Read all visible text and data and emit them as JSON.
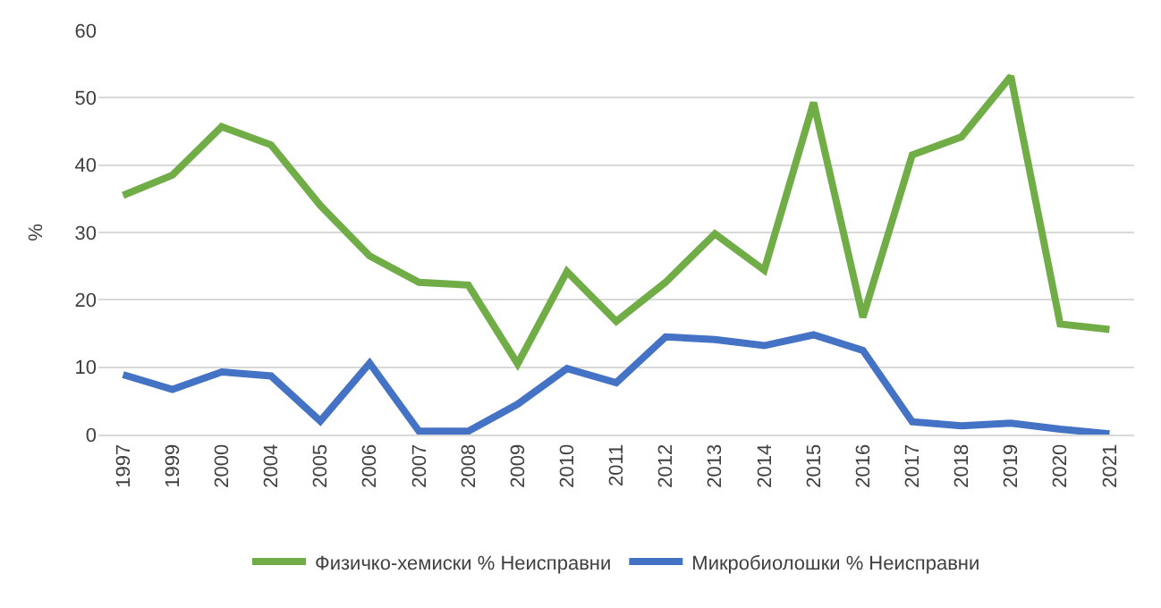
{
  "chart_data": {
    "type": "line",
    "ylabel": "%",
    "categories": [
      "1997",
      "1999",
      "2000",
      "2004",
      "2005",
      "2006",
      "2007",
      "2008",
      "2009",
      "2010",
      "2011",
      "2012",
      "2013",
      "2014",
      "2015",
      "2016",
      "2017",
      "2018",
      "2019",
      "2020",
      "2021"
    ],
    "series": [
      {
        "name": "Физичко-хемиски % Неисправни",
        "color": "#70ad47",
        "values": [
          35.5,
          38.5,
          45.7,
          43,
          34,
          26.5,
          22.6,
          22.2,
          10.5,
          24.2,
          16.8,
          22.6,
          29.8,
          24.4,
          49.3,
          17.4,
          41.5,
          44.2,
          53.2,
          16.4,
          15.6
        ]
      },
      {
        "name": "Микробиолошки % Неисправни",
        "color": "#4472c4",
        "values": [
          8.9,
          6.7,
          9.3,
          8.7,
          2,
          10.6,
          0.5,
          0.5,
          4.5,
          9.8,
          7.7,
          14.5,
          14.1,
          13.2,
          14.8,
          12.5,
          1.9,
          1.3,
          1.7,
          0.8,
          0.1
        ]
      }
    ],
    "ylim": [
      0,
      60
    ],
    "yticks": [
      0,
      10,
      20,
      30,
      40,
      50,
      60
    ],
    "grid": "y",
    "legend": "bottom",
    "marker": "none",
    "line_style": "solid"
  }
}
